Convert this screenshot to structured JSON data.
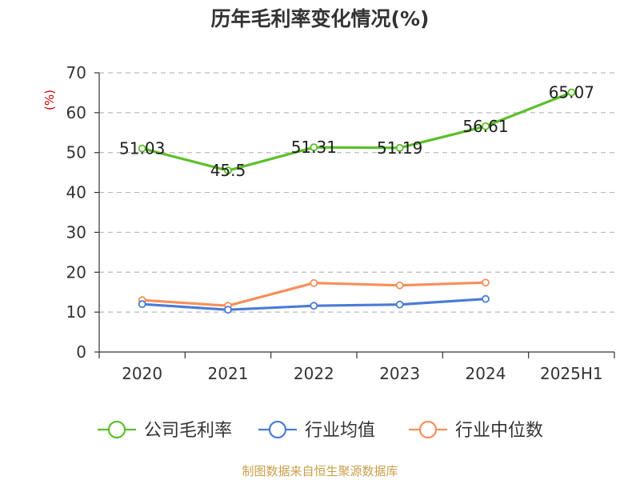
{
  "chart_data": {
    "type": "line",
    "title": "历年毛利率变化情况(%)",
    "ylabel": "(%)",
    "xlabel": "",
    "categories": [
      "2020",
      "2021",
      "2022",
      "2023",
      "2024",
      "2025H1"
    ],
    "ylim": [
      0,
      70
    ],
    "yticks": [
      0,
      10,
      20,
      30,
      40,
      50,
      60,
      70
    ],
    "grid": true,
    "legend_position": "bottom",
    "series": [
      {
        "name": "公司毛利率",
        "color": "#5bbf2a",
        "values": [
          51.03,
          45.5,
          51.31,
          51.19,
          56.61,
          65.07
        ],
        "labels": [
          "51.03",
          "45.5",
          "51.31",
          "51.19",
          "56.61",
          "65.07"
        ]
      },
      {
        "name": "行业均值",
        "color": "#4a7bd8",
        "values": [
          12.0,
          10.6,
          11.6,
          11.9,
          13.3,
          null
        ]
      },
      {
        "name": "行业中位数",
        "color": "#f5905a",
        "values": [
          13.0,
          11.6,
          17.3,
          16.7,
          17.4,
          null
        ]
      }
    ]
  },
  "source_text": "制图数据来自恒生聚源数据库"
}
